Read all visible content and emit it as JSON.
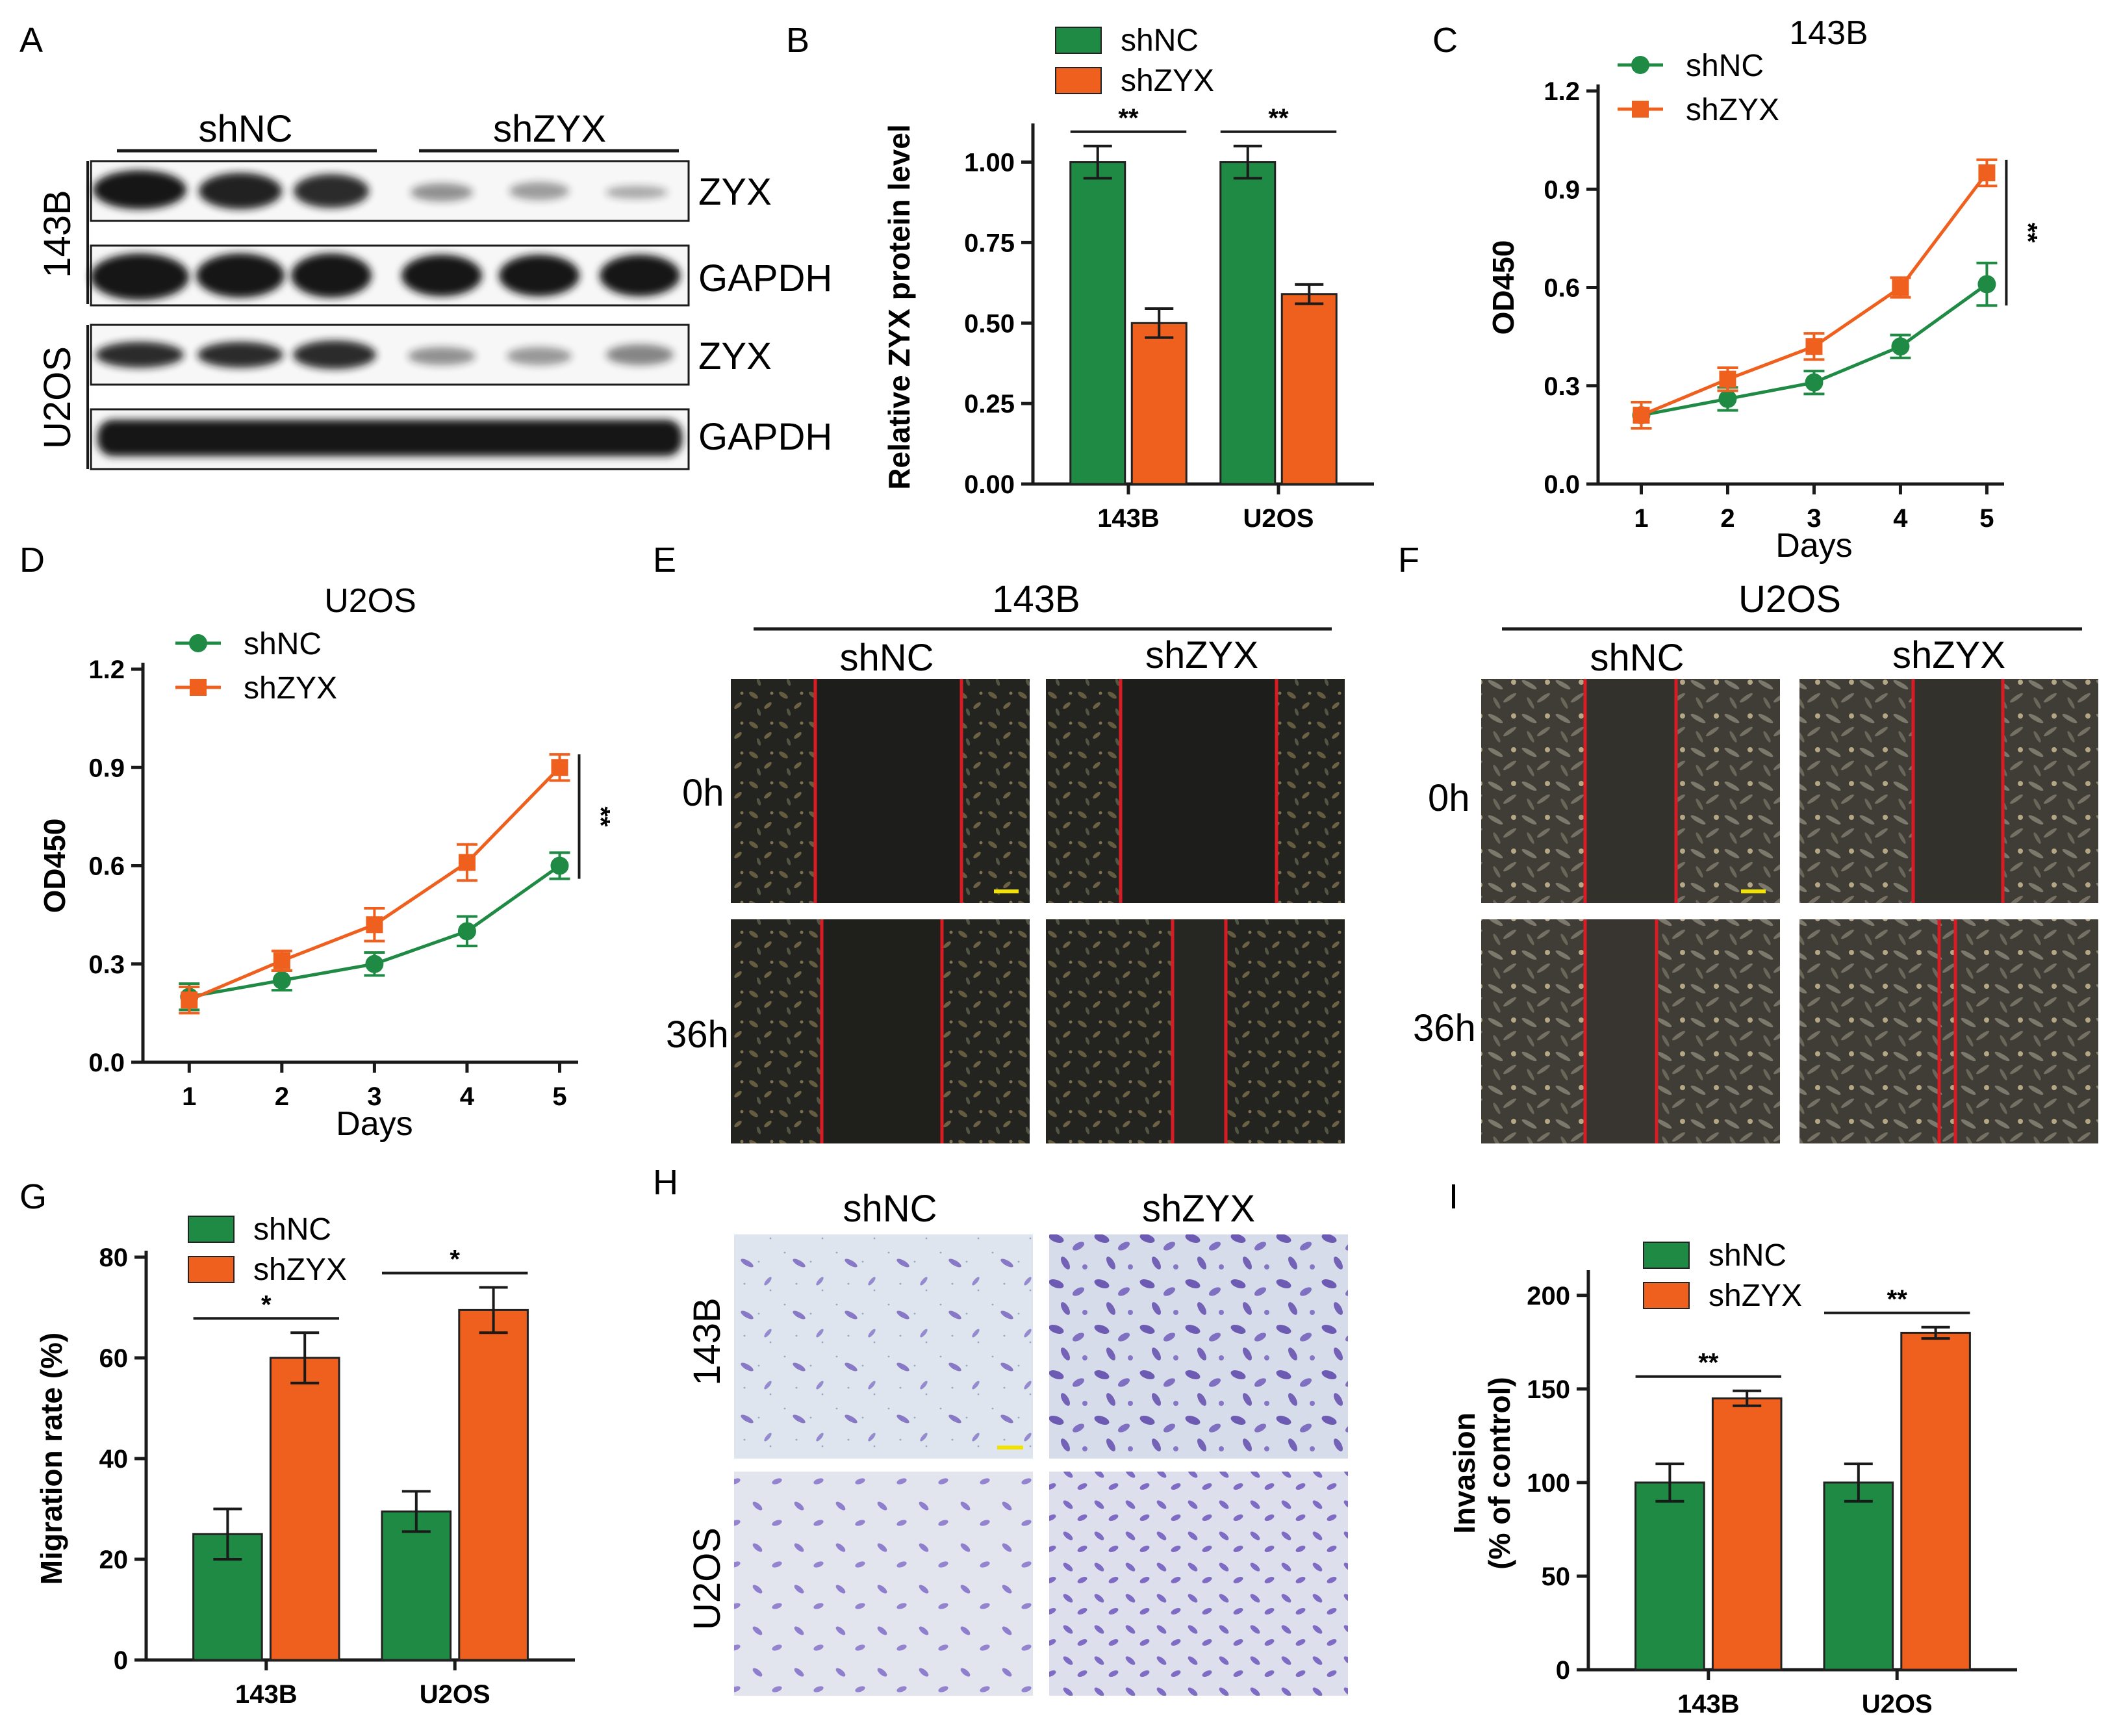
{
  "colors": {
    "shNC": "#1e8a44",
    "shZYX": "#ef5f1d",
    "axis": "#1a1a1a",
    "scratch": "#d91c24",
    "scale": "#f2e200",
    "stain": "#6a55b8"
  },
  "panels": {
    "A": {
      "label": "A",
      "groups": [
        "shNC",
        "shZYX"
      ],
      "rows": [
        {
          "cell_line": "143B",
          "bands": [
            "ZYX",
            "GAPDH"
          ],
          "zyx_intensity": [
            1.0,
            0.95,
            0.9,
            0.45,
            0.4,
            0.35
          ]
        },
        {
          "cell_line": "U2OS",
          "bands": [
            "ZYX",
            "GAPDH"
          ],
          "zyx_intensity": [
            0.9,
            0.9,
            0.9,
            0.45,
            0.42,
            0.5
          ]
        }
      ]
    },
    "E": {
      "label": "E",
      "cell_line": "143B",
      "groups": [
        "shNC",
        "shZYX"
      ],
      "times": [
        "0h",
        "36h"
      ]
    },
    "F": {
      "label": "F",
      "cell_line": "U2OS",
      "groups": [
        "shNC",
        "shZYX"
      ],
      "times": [
        "0h",
        "36h"
      ]
    },
    "H": {
      "label": "H",
      "groups": [
        "shNC",
        "shZYX"
      ],
      "cell_lines": [
        "143B",
        "U2OS"
      ]
    }
  },
  "chart_data": [
    {
      "id": "B",
      "panel_label": "B",
      "type": "bar",
      "title": "",
      "xlabel": "",
      "ylabel": "Relative ZYX protein level",
      "categories": [
        "143B",
        "U2OS"
      ],
      "series": [
        {
          "name": "shNC",
          "values": [
            1.0,
            1.0
          ],
          "errors": [
            0.05,
            0.05
          ]
        },
        {
          "name": "shZYX",
          "values": [
            0.5,
            0.59
          ],
          "errors": [
            0.045,
            0.03
          ]
        }
      ],
      "ylim": [
        0,
        1.1
      ],
      "yticks": [
        0.0,
        0.25,
        0.5,
        0.75,
        1.0
      ],
      "ytick_labels": [
        "0.00",
        "0.25",
        "0.50",
        "0.75",
        "1.00"
      ],
      "significance": [
        "**",
        "**"
      ],
      "legend": "top-left"
    },
    {
      "id": "C",
      "panel_label": "C",
      "type": "line",
      "title": "143B",
      "xlabel": "Days",
      "ylabel": "OD450",
      "x": [
        1,
        2,
        3,
        4,
        5
      ],
      "series": [
        {
          "name": "shNC",
          "values": [
            0.21,
            0.26,
            0.31,
            0.42,
            0.61
          ],
          "errors": [
            0.04,
            0.035,
            0.035,
            0.035,
            0.065
          ]
        },
        {
          "name": "shZYX",
          "values": [
            0.21,
            0.32,
            0.42,
            0.6,
            0.95
          ],
          "errors": [
            0.04,
            0.035,
            0.04,
            0.03,
            0.04
          ]
        }
      ],
      "ylim": [
        0,
        1.2
      ],
      "yticks": [
        0.0,
        0.3,
        0.6,
        0.9,
        1.2
      ],
      "ytick_labels": [
        "0.0",
        "0.3",
        "0.6",
        "0.9",
        "1.2"
      ],
      "xlim": [
        0.5,
        5.2
      ],
      "significance": "**",
      "legend": "top-left"
    },
    {
      "id": "D",
      "panel_label": "D",
      "type": "line",
      "title": "U2OS",
      "xlabel": "Days",
      "ylabel": "OD450",
      "x": [
        1,
        2,
        3,
        4,
        5
      ],
      "series": [
        {
          "name": "shNC",
          "values": [
            0.2,
            0.25,
            0.3,
            0.4,
            0.6
          ],
          "errors": [
            0.04,
            0.03,
            0.035,
            0.045,
            0.04
          ]
        },
        {
          "name": "shZYX",
          "values": [
            0.19,
            0.31,
            0.42,
            0.61,
            0.9
          ],
          "errors": [
            0.04,
            0.03,
            0.05,
            0.055,
            0.04
          ]
        }
      ],
      "ylim": [
        0,
        1.2
      ],
      "yticks": [
        0.0,
        0.3,
        0.6,
        0.9,
        1.2
      ],
      "ytick_labels": [
        "0.0",
        "0.3",
        "0.6",
        "0.9",
        "1.2"
      ],
      "xlim": [
        0.5,
        5.2
      ],
      "significance": "**",
      "legend": "top-left"
    },
    {
      "id": "G",
      "panel_label": "G",
      "type": "bar",
      "title": "",
      "xlabel": "",
      "ylabel": "Migration rate (%)",
      "categories": [
        "143B",
        "U2OS"
      ],
      "series": [
        {
          "name": "shNC",
          "values": [
            25,
            29.5
          ],
          "errors": [
            5,
            4
          ]
        },
        {
          "name": "shZYX",
          "values": [
            60,
            69.5
          ],
          "errors": [
            5,
            4.5
          ]
        }
      ],
      "ylim": [
        0,
        80
      ],
      "yticks": [
        0,
        20,
        40,
        60,
        80
      ],
      "ytick_labels": [
        "0",
        "20",
        "40",
        "60",
        "80"
      ],
      "significance": [
        "*",
        "*"
      ],
      "legend": "top-left"
    },
    {
      "id": "I",
      "panel_label": "I",
      "type": "bar",
      "title": "",
      "xlabel": "",
      "ylabel": "Invasion",
      "ylabel2": "(% of control)",
      "categories": [
        "143B",
        "U2OS"
      ],
      "series": [
        {
          "name": "shNC",
          "values": [
            100,
            100
          ],
          "errors": [
            10,
            10
          ]
        },
        {
          "name": "shZYX",
          "values": [
            145,
            180
          ],
          "errors": [
            4,
            3
          ]
        }
      ],
      "ylim": [
        0,
        210
      ],
      "yticks": [
        0,
        50,
        100,
        150,
        200
      ],
      "ytick_labels": [
        "0",
        "50",
        "100",
        "150",
        "200"
      ],
      "significance": [
        "**",
        "**"
      ],
      "legend": "top-left"
    }
  ]
}
